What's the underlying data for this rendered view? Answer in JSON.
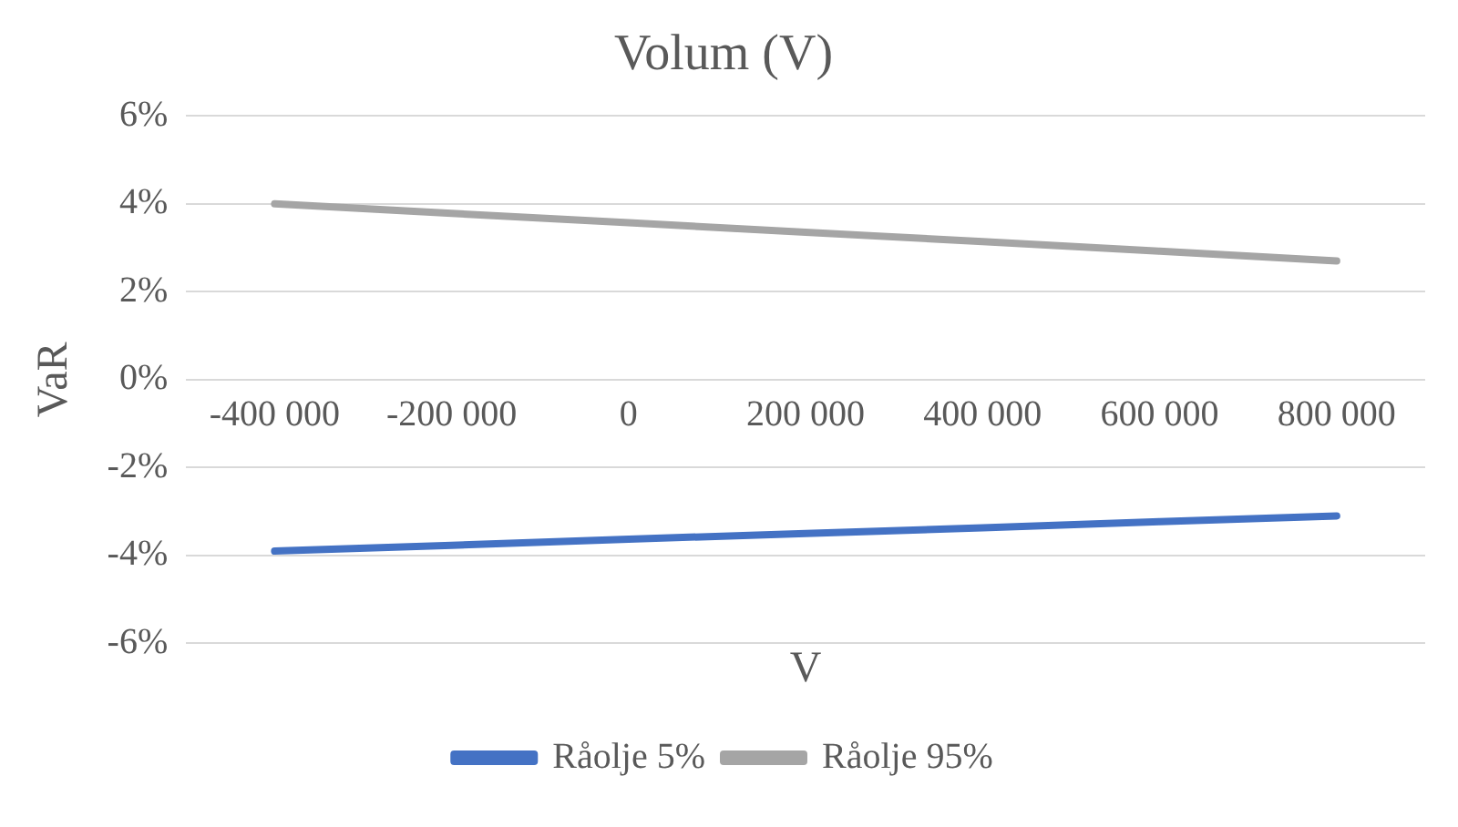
{
  "chart_data": {
    "type": "line",
    "title": "Volum (V)",
    "xlabel": "V",
    "ylabel": "VaR",
    "categories": [
      "-400 000",
      "-200 000",
      "0",
      "200 000",
      "400 000",
      "600 000",
      "800 000"
    ],
    "series": [
      {
        "name": "Råolje 5%",
        "color": "#4472c4",
        "values": [
          -3.9,
          -3.77,
          -3.63,
          -3.5,
          -3.37,
          -3.23,
          -3.1
        ]
      },
      {
        "name": "Råolje 95%",
        "color": "#a5a5a5",
        "values": [
          4.0,
          3.78,
          3.57,
          3.35,
          3.14,
          2.92,
          2.7
        ]
      }
    ],
    "ylim": [
      -6,
      6
    ],
    "yticks": [
      {
        "value": -6,
        "label": "-6%"
      },
      {
        "value": -4,
        "label": "-4%"
      },
      {
        "value": -2,
        "label": "-2%"
      },
      {
        "value": 0,
        "label": "0%"
      },
      {
        "value": 2,
        "label": "2%"
      },
      {
        "value": 4,
        "label": "4%"
      },
      {
        "value": 6,
        "label": "6%"
      }
    ],
    "grid": "y",
    "legend": "bottom",
    "marker": "none",
    "line_style": "solid"
  }
}
